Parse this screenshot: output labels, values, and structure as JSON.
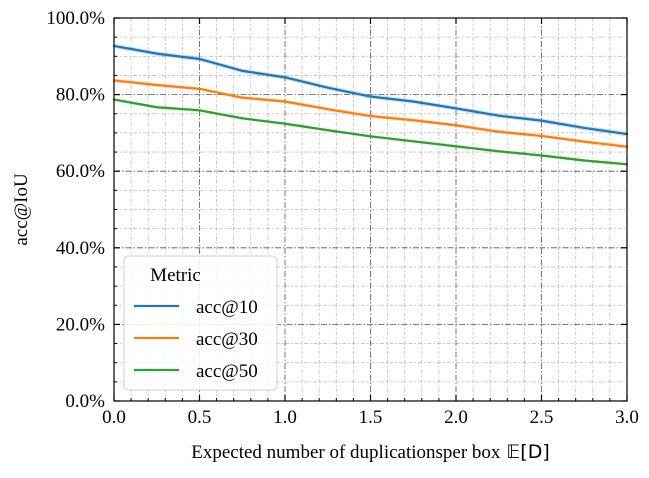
{
  "chart_data": {
    "type": "line",
    "title": "",
    "xlabel": "Expected number of duplicationsper box",
    "xlabel_math": "𝔼[D]",
    "ylabel": "acc@IoU",
    "xlim": [
      0.0,
      3.0
    ],
    "ylim": [
      0.0,
      1.0
    ],
    "x_ticks": [
      0.0,
      0.5,
      1.0,
      1.5,
      2.0,
      2.5,
      3.0
    ],
    "x_tick_labels": [
      "0.0",
      "0.5",
      "1.0",
      "1.5",
      "2.0",
      "2.5",
      "3.0"
    ],
    "y_ticks": [
      0.0,
      0.2,
      0.4,
      0.6,
      0.8,
      1.0
    ],
    "y_tick_labels": [
      "0.0%",
      "20.0%",
      "40.0%",
      "60.0%",
      "80.0%",
      "100.0%"
    ],
    "x_minor_step": 0.1,
    "y_minor_step": 0.05,
    "grid": true,
    "legend": {
      "title": "Metric",
      "placement": "lower-left"
    },
    "x": [
      0.0,
      0.25,
      0.5,
      0.75,
      1.0,
      1.25,
      1.5,
      1.75,
      2.0,
      2.25,
      2.5,
      2.75,
      3.0
    ],
    "series": [
      {
        "name": "acc@10",
        "color": "#1f77b4",
        "values": [
          0.927,
          0.907,
          0.893,
          0.862,
          0.845,
          0.818,
          0.795,
          0.782,
          0.764,
          0.745,
          0.732,
          0.713,
          0.697
        ],
        "band": 0.006
      },
      {
        "name": "acc@30",
        "color": "#ff7f0e",
        "values": [
          0.837,
          0.825,
          0.815,
          0.792,
          0.782,
          0.762,
          0.744,
          0.733,
          0.72,
          0.703,
          0.692,
          0.677,
          0.664
        ],
        "band": 0.005
      },
      {
        "name": "acc@50",
        "color": "#2ca02c",
        "values": [
          0.787,
          0.767,
          0.759,
          0.738,
          0.724,
          0.707,
          0.691,
          0.678,
          0.665,
          0.652,
          0.641,
          0.628,
          0.618
        ],
        "band": 0.004
      }
    ]
  }
}
